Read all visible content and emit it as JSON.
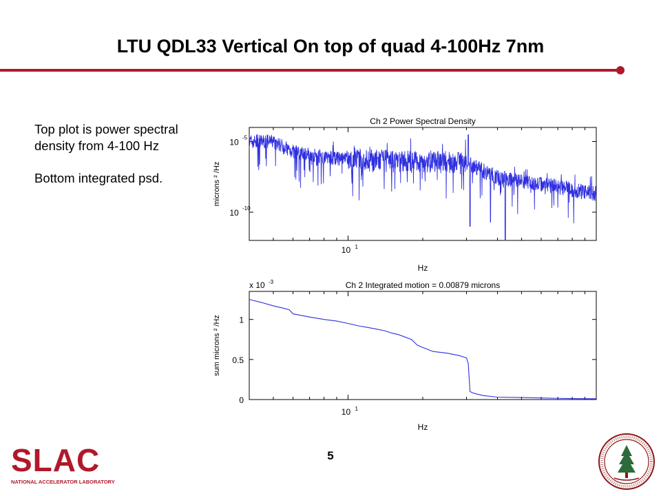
{
  "slide": {
    "title": "LTU QDL33 Vertical On top of quad 4-100Hz 7nm",
    "page_number": "5",
    "accent_color": "#b1182b",
    "sidebar_text": {
      "p1": "Top plot is power spectral density from 4-100 Hz",
      "p2": "Bottom integrated psd."
    },
    "logo": {
      "text": "SLAC",
      "subtext": "NATIONAL ACCELERATOR LABORATORY"
    },
    "seal": {
      "icon": "stanford-seal-icon"
    }
  },
  "chart_data": [
    {
      "type": "line",
      "title": "Ch 2  Power Spectral Density",
      "xlabel": "Hz",
      "ylabel": "microns ² /Hz",
      "x_scale": "log",
      "y_scale": "log",
      "xlim": [
        4,
        100
      ],
      "ylim": [
        1e-12,
        0.0001
      ],
      "y_ticks": [
        {
          "value": 1e-05,
          "label": "10",
          "exp": "-5"
        },
        {
          "value": 1e-10,
          "label": "10",
          "exp": "-10"
        }
      ],
      "x_ticks": [
        {
          "value": 10,
          "label": "10",
          "exp": "1"
        }
      ],
      "color": "#2f2fe0",
      "envelope": {
        "x": [
          4,
          5,
          6,
          8,
          10,
          15,
          20,
          30,
          40,
          60,
          100
        ],
        "y_median": [
          1e-05,
          1e-05,
          2e-06,
          8e-07,
          5e-07,
          4e-07,
          4e-07,
          3e-07,
          3e-08,
          1e-08,
          2e-09
        ]
      },
      "notable_points": [
        {
          "x": 30.5,
          "y": 3e-05
        },
        {
          "x": 43,
          "y": 1e-12
        },
        {
          "x": 31,
          "y": 1e-11
        },
        {
          "x": 37.5,
          "y": 2e-11
        }
      ]
    },
    {
      "type": "line",
      "title": "Ch 2  Integrated motion = 0.00879 microns",
      "xlabel": "Hz",
      "ylabel": "sum microns ² /Hz",
      "y_multiplier": "x 10-3",
      "x_scale": "log",
      "xlim": [
        4,
        100
      ],
      "ylim": [
        0,
        1.35
      ],
      "y_ticks": [
        0,
        0.5,
        1
      ],
      "x_ticks": [
        {
          "value": 10,
          "label": "10",
          "exp": "1"
        }
      ],
      "color": "#2f2fe0",
      "x": [
        4,
        4.5,
        5,
        5.5,
        5.8,
        6,
        7,
        8,
        9,
        10,
        11,
        12,
        13,
        14,
        15,
        16,
        18,
        19,
        20,
        22,
        25,
        28,
        30,
        30.5,
        31,
        32,
        35,
        40,
        50,
        60,
        70,
        80,
        100
      ],
      "y": [
        1.25,
        1.21,
        1.17,
        1.14,
        1.12,
        1.07,
        1.03,
        1.0,
        0.98,
        0.95,
        0.92,
        0.9,
        0.88,
        0.86,
        0.83,
        0.81,
        0.75,
        0.68,
        0.65,
        0.6,
        0.58,
        0.55,
        0.52,
        0.45,
        0.1,
        0.08,
        0.05,
        0.03,
        0.025,
        0.02,
        0.015,
        0.012,
        0.01
      ]
    }
  ]
}
